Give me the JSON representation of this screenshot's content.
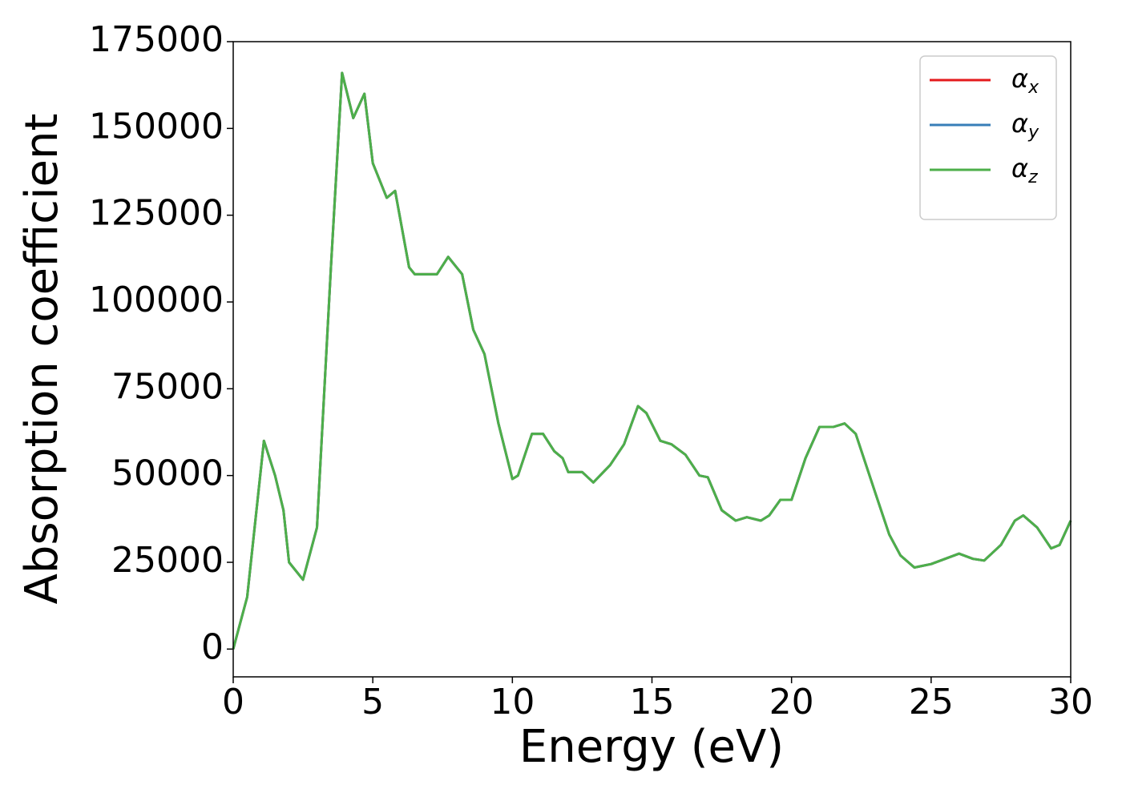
{
  "chart_data": {
    "type": "line",
    "xlabel": "Energy (eV)",
    "ylabel": "Absorption coefficient",
    "x": [
      0,
      0.5,
      1.1,
      1.5,
      1.8,
      2.0,
      2.5,
      3.0,
      3.5,
      3.9,
      4.3,
      4.7,
      5.0,
      5.5,
      5.8,
      6.3,
      6.5,
      7.0,
      7.3,
      7.7,
      8.0,
      8.2,
      8.6,
      9.0,
      9.5,
      10.0,
      10.2,
      10.7,
      11.1,
      11.5,
      11.8,
      12.0,
      12.5,
      12.9,
      13.5,
      14.0,
      14.5,
      14.8,
      15.3,
      15.7,
      16.2,
      16.7,
      17.0,
      17.5,
      18.0,
      18.4,
      18.9,
      19.2,
      19.6,
      20.0,
      20.5,
      21.0,
      21.5,
      21.9,
      22.3,
      23.0,
      23.5,
      23.9,
      24.4,
      25.0,
      25.5,
      26.0,
      26.5,
      26.9,
      27.5,
      28.0,
      28.3,
      28.8,
      29.3,
      29.6,
      30.0
    ],
    "series": [
      {
        "name": "αx",
        "color": "#e41a1c",
        "values": [
          0,
          15000,
          60000,
          50000,
          40000,
          25000,
          20000,
          35000,
          110000,
          166000,
          153000,
          160000,
          140000,
          130000,
          132000,
          110000,
          108000,
          108000,
          108000,
          113000,
          110000,
          108000,
          92000,
          85000,
          65000,
          49000,
          50000,
          62000,
          62000,
          57000,
          55000,
          51000,
          51000,
          48000,
          53000,
          59000,
          70000,
          68000,
          60000,
          59000,
          56000,
          50000,
          49500,
          40000,
          37000,
          38000,
          37000,
          38500,
          43000,
          43000,
          55000,
          64000,
          64000,
          65000,
          62000,
          45000,
          33000,
          27000,
          23500,
          24500,
          26000,
          27500,
          26000,
          25500,
          30000,
          37000,
          38500,
          35000,
          29000,
          30000,
          37000
        ]
      },
      {
        "name": "αy",
        "color": "#377eb8",
        "values": [
          0,
          15000,
          60000,
          50000,
          40000,
          25000,
          20000,
          35000,
          110000,
          166000,
          153000,
          160000,
          140000,
          130000,
          132000,
          110000,
          108000,
          108000,
          108000,
          113000,
          110000,
          108000,
          92000,
          85000,
          65000,
          49000,
          50000,
          62000,
          62000,
          57000,
          55000,
          51000,
          51000,
          48000,
          53000,
          59000,
          70000,
          68000,
          60000,
          59000,
          56000,
          50000,
          49500,
          40000,
          37000,
          38000,
          37000,
          38500,
          43000,
          43000,
          55000,
          64000,
          64000,
          65000,
          62000,
          45000,
          33000,
          27000,
          23500,
          24500,
          26000,
          27500,
          26000,
          25500,
          30000,
          37000,
          38500,
          35000,
          29000,
          30000,
          37000
        ]
      },
      {
        "name": "αz",
        "color": "#4daf4a",
        "values": [
          0,
          15000,
          60000,
          50000,
          40000,
          25000,
          20000,
          35000,
          110000,
          166000,
          153000,
          160000,
          140000,
          130000,
          132000,
          110000,
          108000,
          108000,
          108000,
          113000,
          110000,
          108000,
          92000,
          85000,
          65000,
          49000,
          50000,
          62000,
          62000,
          57000,
          55000,
          51000,
          51000,
          48000,
          53000,
          59000,
          70000,
          68000,
          60000,
          59000,
          56000,
          50000,
          49500,
          40000,
          37000,
          38000,
          37000,
          38500,
          43000,
          43000,
          55000,
          64000,
          64000,
          65000,
          62000,
          45000,
          33000,
          27000,
          23500,
          24500,
          26000,
          27500,
          26000,
          25500,
          30000,
          37000,
          38500,
          35000,
          29000,
          30000,
          37000
        ]
      }
    ],
    "xlim": [
      0,
      30
    ],
    "xticks": [
      0,
      5,
      10,
      15,
      20,
      25,
      30
    ],
    "ylim": [
      -8000,
      175000
    ],
    "yticks": [
      0,
      25000,
      50000,
      75000,
      100000,
      125000,
      150000,
      175000
    ],
    "legend": "upper right"
  }
}
